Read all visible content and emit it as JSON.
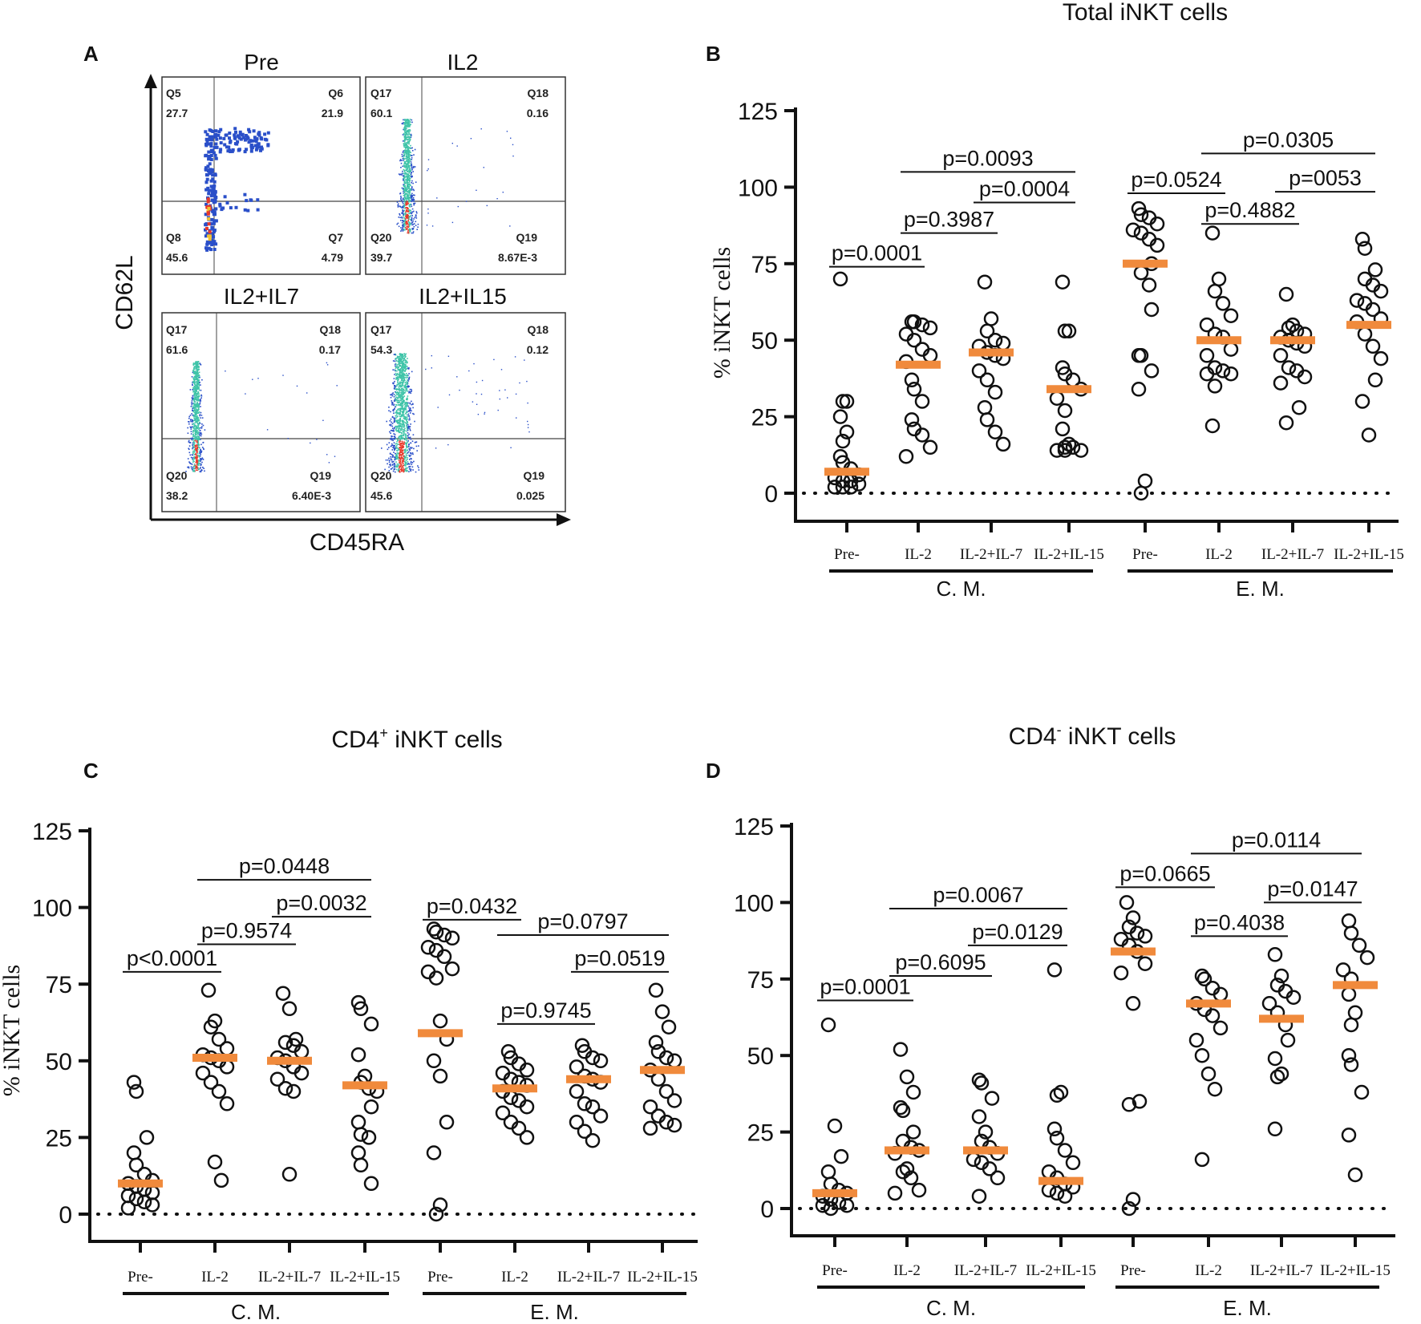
{
  "colors": {
    "median": "#f08a3c",
    "point_stroke": "#111111",
    "axis": "#111111",
    "dense_low": "#2a4fc9",
    "dense_mid": "#3fc4a8",
    "dense_high": "#e8392b"
  },
  "flow": {
    "letter": "A",
    "x_axis_label": "CD45RA",
    "y_axis_label": "CD62L",
    "panels": [
      {
        "title": "Pre",
        "q_tl": "Q5",
        "v_tl": "27.7",
        "q_tr": "Q6",
        "v_tr": "21.9",
        "q_bl": "Q8",
        "v_bl": "45.6",
        "q_br": "Q7",
        "v_br": "4.79"
      },
      {
        "title": "IL2",
        "q_tl": "Q17",
        "v_tl": "60.1",
        "q_tr": "Q18",
        "v_tr": "0.16",
        "q_bl": "Q20",
        "v_bl": "39.7",
        "q_br": "Q19",
        "v_br": "8.67E-3"
      },
      {
        "title": "IL2+IL7",
        "q_tl": "Q17",
        "v_tl": "61.6",
        "q_tr": "Q18",
        "v_tr": "0.17",
        "q_bl": "Q20",
        "v_bl": "38.2",
        "q_br": "Q19",
        "v_br": "6.40E-3"
      },
      {
        "title": "IL2+IL15",
        "q_tl": "Q17",
        "v_tl": "54.3",
        "q_tr": "Q18",
        "v_tr": "0.12",
        "q_bl": "Q20",
        "v_bl": "45.6",
        "q_br": "Q19",
        "v_br": "0.025"
      }
    ]
  },
  "chart_data": [
    {
      "panel": "B",
      "type": "scatter",
      "title": "Total iNKT cells",
      "ylabel": "% iNKT cells",
      "ylim": [
        0,
        125
      ],
      "yticks": [
        "0",
        "25",
        "50",
        "75",
        "100",
        "125"
      ],
      "categories": [
        "Pre-",
        "IL-2",
        "IL-2+IL-7",
        "IL-2+IL-15",
        "Pre-",
        "IL-2",
        "IL-2+IL-7",
        "IL-2+IL-15"
      ],
      "groups": [
        {
          "label": "C. M.",
          "from": 0,
          "to": 3
        },
        {
          "label": "E. M.",
          "from": 4,
          "to": 7
        }
      ],
      "medians": [
        7,
        42,
        46,
        34,
        75,
        50,
        50,
        55
      ],
      "points": [
        [
          70,
          30,
          30,
          25,
          20,
          17,
          12,
          10,
          8,
          6,
          5,
          4,
          4,
          3,
          2,
          2,
          2
        ],
        [
          56,
          56,
          55,
          54,
          52,
          50,
          47,
          45,
          43,
          37,
          34,
          30,
          24,
          21,
          19,
          15,
          12
        ],
        [
          69,
          57,
          53,
          50,
          49,
          48,
          46,
          45,
          44,
          40,
          37,
          33,
          28,
          24,
          20,
          16
        ],
        [
          69,
          53,
          53,
          41,
          39,
          37,
          34,
          31,
          27,
          21,
          16,
          15,
          15,
          14,
          14,
          14
        ],
        [
          93,
          91,
          90,
          88,
          86,
          85,
          83,
          81,
          75,
          72,
          68,
          60,
          45,
          45,
          40,
          34,
          4,
          0
        ],
        [
          85,
          70,
          66,
          62,
          58,
          55,
          52,
          51,
          47,
          45,
          41,
          40,
          39,
          39,
          35,
          22
        ],
        [
          65,
          55,
          54,
          53,
          52,
          51,
          50,
          49,
          48,
          45,
          41,
          40,
          38,
          36,
          28,
          23
        ],
        [
          83,
          80,
          73,
          70,
          68,
          66,
          63,
          62,
          60,
          57,
          56,
          52,
          48,
          44,
          37,
          30,
          19
        ]
      ],
      "comparisons": [
        {
          "a": 0,
          "b": 1,
          "text": "p=0.0001",
          "y": 74
        },
        {
          "a": 1,
          "b": 2,
          "text": "p=0.3987",
          "y": 85
        },
        {
          "a": 2,
          "b": 3,
          "text": "p=0.0004",
          "y": 95
        },
        {
          "a": 1,
          "b": 3,
          "text": "p=0.0093",
          "y": 105
        },
        {
          "a": 4,
          "b": 5,
          "text": "p=0.0524",
          "y": 98
        },
        {
          "a": 5,
          "b": 6,
          "text": "p=0.4882",
          "y": 88
        },
        {
          "a": 6,
          "b": 7,
          "text": "p=0053",
          "y": 98.5
        },
        {
          "a": 5,
          "b": 7,
          "text": "p=0.0305",
          "y": 111
        }
      ]
    },
    {
      "panel": "C",
      "type": "scatter",
      "title_main": "CD4",
      "title_sup": "+",
      "title_rest": " iNKT cells",
      "ylabel": "% iNKT cells",
      "ylim": [
        0,
        125
      ],
      "yticks": [
        "0",
        "25",
        "50",
        "75",
        "100",
        "125"
      ],
      "categories": [
        "Pre-",
        "IL-2",
        "IL-2+IL-7",
        "IL-2+IL-15",
        "Pre-",
        "IL-2",
        "IL-2+IL-7",
        "IL-2+IL-15"
      ],
      "groups": [
        {
          "label": "C. M.",
          "from": 0,
          "to": 3
        },
        {
          "label": "E. M.",
          "from": 4,
          "to": 7
        }
      ],
      "medians": [
        10,
        51,
        50,
        42,
        59,
        41,
        44,
        47
      ],
      "points": [
        [
          43,
          40,
          25,
          20,
          16,
          13,
          11,
          10,
          9,
          8,
          7,
          6,
          5,
          4,
          3,
          2
        ],
        [
          73,
          63,
          61,
          57,
          54,
          52,
          51,
          50,
          48,
          46,
          43,
          40,
          36,
          17,
          11
        ],
        [
          72,
          67,
          57,
          56,
          55,
          53,
          51,
          50,
          48,
          46,
          44,
          41,
          40,
          13
        ],
        [
          69,
          67,
          62,
          52,
          45,
          43,
          41,
          40,
          35,
          30,
          26,
          25,
          20,
          16,
          10
        ],
        [
          93,
          92,
          91,
          90,
          87,
          86,
          84,
          80,
          79,
          77,
          63,
          57,
          50,
          45,
          30,
          20,
          3,
          0
        ],
        [
          53,
          51,
          49,
          47,
          46,
          44,
          43,
          42,
          40,
          38,
          37,
          35,
          33,
          30,
          28,
          25
        ],
        [
          55,
          53,
          51,
          50,
          48,
          45,
          44,
          43,
          40,
          36,
          35,
          32,
          30,
          27,
          24
        ],
        [
          73,
          66,
          61,
          56,
          53,
          51,
          50,
          47,
          44,
          40,
          37,
          35,
          32,
          30,
          29,
          28
        ]
      ],
      "comparisons": [
        {
          "a": 0,
          "b": 1,
          "text": "p<0.0001",
          "y": 79
        },
        {
          "a": 1,
          "b": 2,
          "text": "p=0.9574",
          "y": 88
        },
        {
          "a": 2,
          "b": 3,
          "text": "p=0.0032",
          "y": 97
        },
        {
          "a": 1,
          "b": 3,
          "text": "p=0.0448",
          "y": 109
        },
        {
          "a": 4,
          "b": 5,
          "text": "p=0.0432",
          "y": 96
        },
        {
          "a": 5,
          "b": 6,
          "text": "p=0.9745",
          "y": 62
        },
        {
          "a": 6,
          "b": 7,
          "text": "p=0.0519",
          "y": 79
        },
        {
          "a": 5,
          "b": 7,
          "text": "p=0.0797",
          "y": 91
        }
      ]
    },
    {
      "panel": "D",
      "type": "scatter",
      "title_main": "CD4",
      "title_sup": "-",
      "title_rest": " iNKT cells",
      "ylabel": "",
      "ylim": [
        0,
        125
      ],
      "yticks": [
        "0",
        "25",
        "50",
        "75",
        "100",
        "125"
      ],
      "categories": [
        "Pre-",
        "IL-2",
        "IL-2+IL-7",
        "IL-2+IL-15",
        "Pre-",
        "IL-2",
        "IL-2+IL-7",
        "IL-2+IL-15"
      ],
      "groups": [
        {
          "label": "C. M.",
          "from": 0,
          "to": 3
        },
        {
          "label": "E. M.",
          "from": 4,
          "to": 7
        }
      ],
      "medians": [
        5,
        19,
        19,
        9,
        84,
        67,
        62,
        73
      ],
      "points": [
        [
          60,
          27,
          17,
          12,
          8,
          6,
          5,
          4,
          3,
          2,
          1,
          1,
          0
        ],
        [
          52,
          43,
          38,
          33,
          32,
          25,
          22,
          20,
          19,
          18,
          13,
          12,
          10,
          6,
          5
        ],
        [
          42,
          41,
          36,
          30,
          25,
          22,
          20,
          18,
          16,
          15,
          13,
          10,
          4
        ],
        [
          78,
          38,
          37,
          26,
          23,
          19,
          15,
          12,
          10,
          8,
          7,
          6,
          5,
          4
        ],
        [
          100,
          95,
          92,
          90,
          89,
          88,
          86,
          84,
          80,
          77,
          67,
          35,
          34,
          3,
          0
        ],
        [
          76,
          75,
          72,
          70,
          67,
          65,
          63,
          59,
          55,
          50,
          44,
          39,
          16
        ],
        [
          83,
          76,
          73,
          71,
          69,
          67,
          64,
          60,
          55,
          49,
          44,
          43,
          26
        ],
        [
          94,
          90,
          86,
          82,
          78,
          75,
          70,
          64,
          60,
          50,
          47,
          38,
          24,
          11
        ]
      ],
      "comparisons": [
        {
          "a": 0,
          "b": 1,
          "text": "p=0.0001",
          "y": 68
        },
        {
          "a": 1,
          "b": 2,
          "text": "p=0.6095",
          "y": 76
        },
        {
          "a": 2,
          "b": 3,
          "text": "p=0.0129",
          "y": 86
        },
        {
          "a": 1,
          "b": 3,
          "text": "p=0.0067",
          "y": 98
        },
        {
          "a": 4,
          "b": 5,
          "text": "p=0.0665",
          "y": 105
        },
        {
          "a": 5,
          "b": 6,
          "text": "p=0.4038",
          "y": 89
        },
        {
          "a": 6,
          "b": 7,
          "text": "p=0.0147",
          "y": 100
        },
        {
          "a": 5,
          "b": 7,
          "text": "p=0.0114",
          "y": 116
        }
      ]
    }
  ]
}
